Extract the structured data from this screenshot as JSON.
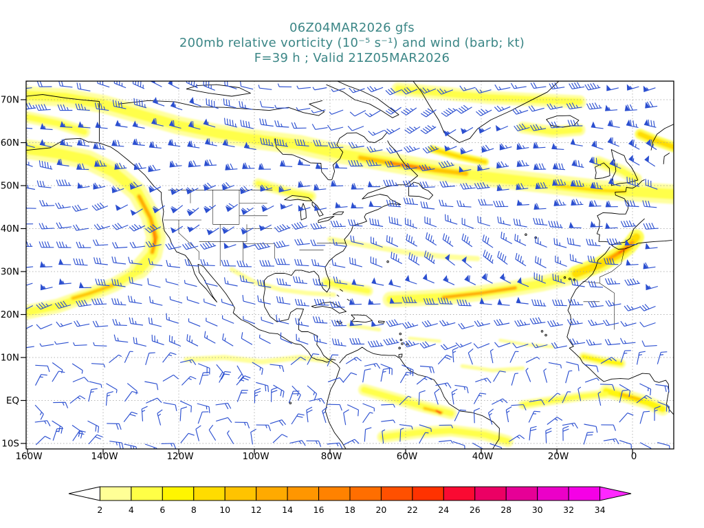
{
  "header": {
    "line1": "06Z04MAR2026 gfs",
    "line2": "200mb relative vorticity (10⁻⁵ s⁻¹) and wind (barb; kt)",
    "line3": "F=39 h ; Valid 21Z05MAR2026"
  },
  "colors": {
    "title_text": "#3b8686",
    "axis_text": "#000000",
    "wind_barb": "#2b4fd0",
    "coastline": "#000000",
    "gridline": "#999999",
    "background": "#ffffff"
  },
  "map": {
    "lat_ticks": [
      {
        "label": "70N",
        "value": 70
      },
      {
        "label": "60N",
        "value": 60
      },
      {
        "label": "50N",
        "value": 50
      },
      {
        "label": "40N",
        "value": 40
      },
      {
        "label": "30N",
        "value": 30
      },
      {
        "label": "20N",
        "value": 20
      },
      {
        "label": "10N",
        "value": 10
      },
      {
        "label": "EQ",
        "value": 0
      },
      {
        "label": "10S",
        "value": -10
      }
    ],
    "lon_ticks": [
      {
        "label": "160W",
        "value": -160
      },
      {
        "label": "140W",
        "value": -140
      },
      {
        "label": "120W",
        "value": -120
      },
      {
        "label": "100W",
        "value": -100
      },
      {
        "label": "80W",
        "value": -80
      },
      {
        "label": "60W",
        "value": -60
      },
      {
        "label": "40W",
        "value": -40
      },
      {
        "label": "20W",
        "value": -20
      },
      {
        "label": "0",
        "value": 0
      }
    ]
  },
  "chart_data": {
    "type": "heatmap",
    "title": "200mb relative vorticity (10⁻⁵ s⁻¹) and wind (barb; kt)",
    "model_run": "06Z04MAR2026 gfs",
    "forecast": "F=39 h",
    "valid": "21Z05MAR2026",
    "level": "200mb",
    "variable": "relative vorticity",
    "units": "10⁻⁵ s⁻¹",
    "wind": {
      "style": "barb",
      "units": "kt"
    },
    "lon_range": [
      -160,
      10
    ],
    "lat_range": [
      -11,
      74
    ],
    "grid": {
      "lon_step": 20,
      "lat_step": 10,
      "style": "dashed"
    },
    "colorbar": {
      "orientation": "horizontal",
      "levels": [
        2,
        4,
        6,
        8,
        10,
        12,
        14,
        16,
        18,
        20,
        22,
        24,
        26,
        28,
        30,
        32,
        34
      ],
      "colors": [
        "#ffffff",
        "#ffff96",
        "#ffff46",
        "#fff500",
        "#ffdc00",
        "#ffc300",
        "#ffaa00",
        "#ff9600",
        "#ff8200",
        "#ff6e00",
        "#ff5000",
        "#ff3200",
        "#fa0a32",
        "#eb0064",
        "#e60096",
        "#eb00c8",
        "#f500e6",
        "#ff28ff"
      ]
    },
    "vorticity_maxima": [
      {
        "lon": -126.5,
        "lat": 38,
        "value": 18
      },
      {
        "lon": -127.5,
        "lat": 43,
        "value": 12
      },
      {
        "lon": -58,
        "lat": 54.5,
        "value": 16
      },
      {
        "lon": -2,
        "lat": 35,
        "value": 21
      },
      {
        "lon": -40,
        "lat": 25,
        "value": 12
      },
      {
        "lon": -144,
        "lat": 25,
        "value": 11
      },
      {
        "lon": -51,
        "lat": -2.7,
        "value": 23
      },
      {
        "lon": 0,
        "lat": 0.8,
        "value": 11
      }
    ],
    "shaded_bands": [
      {
        "v": 5,
        "w": 15,
        "pts": [
          [
            -160.4,
            58.5
          ],
          [
            -152,
            57.5
          ],
          [
            -144,
            56
          ],
          [
            -137,
            53
          ],
          [
            -131,
            48.5
          ],
          [
            -127.5,
            43
          ],
          [
            -126,
            38
          ],
          [
            -127,
            34
          ],
          [
            -130.5,
            30.5
          ]
        ]
      },
      {
        "v": 12,
        "w": 6,
        "pts": [
          [
            -130.5,
            47.5
          ],
          [
            -127.5,
            42.5
          ],
          [
            -126,
            38
          ],
          [
            -127,
            34.5
          ]
        ]
      },
      {
        "v": 18,
        "w": 3,
        "pts": [
          [
            -126.8,
            39.5
          ],
          [
            -126.2,
            36.5
          ]
        ]
      },
      {
        "v": 4,
        "w": 11,
        "pts": [
          [
            -131,
            30
          ],
          [
            -137,
            27
          ],
          [
            -144,
            24.5
          ],
          [
            -152,
            22
          ],
          [
            -160.4,
            20.5
          ]
        ]
      },
      {
        "v": 11,
        "w": 5,
        "pts": [
          [
            -137.5,
            26.8
          ],
          [
            -144,
            24.8
          ],
          [
            -148,
            23.8
          ]
        ]
      },
      {
        "v": 4,
        "w": 14,
        "pts": [
          [
            -160.4,
            71
          ],
          [
            -150,
            70.5
          ],
          [
            -140,
            69
          ],
          [
            -130,
            66.5
          ],
          [
            -120,
            64
          ],
          [
            -110,
            62.2
          ],
          [
            -100,
            60.8
          ]
        ]
      },
      {
        "v": 5,
        "w": 15,
        "pts": [
          [
            -100,
            60.8
          ],
          [
            -88,
            59.5
          ],
          [
            -78,
            57.5
          ],
          [
            -68,
            56
          ],
          [
            -58,
            54.5
          ],
          [
            -48,
            53
          ],
          [
            -38,
            52
          ],
          [
            -28,
            51
          ],
          [
            -18,
            50
          ],
          [
            -8,
            49
          ],
          [
            2,
            48.5
          ],
          [
            10.9,
            48
          ]
        ]
      },
      {
        "v": 11,
        "w": 7,
        "pts": [
          [
            -72,
            56.5
          ],
          [
            -62,
            55
          ],
          [
            -52,
            53.6
          ],
          [
            -44,
            52.8
          ]
        ]
      },
      {
        "v": 16,
        "w": 4,
        "pts": [
          [
            -64,
            55.2
          ],
          [
            -54,
            53.9
          ]
        ]
      },
      {
        "v": 9,
        "w": 5,
        "pts": [
          [
            -20,
            50
          ],
          [
            -10,
            49
          ],
          [
            -2,
            48.6
          ]
        ]
      },
      {
        "v": 4,
        "w": 10,
        "pts": [
          [
            -62,
            72.5
          ],
          [
            -50,
            71.5
          ],
          [
            -38,
            70.5
          ],
          [
            -26,
            70
          ],
          [
            -14,
            69.5
          ]
        ]
      },
      {
        "v": 4,
        "w": 9,
        "pts": [
          [
            -160.4,
            66
          ],
          [
            -152,
            64.5
          ],
          [
            -145,
            62.5
          ]
        ]
      },
      {
        "v": 3,
        "w": 8,
        "pts": [
          [
            -80,
            37.5
          ],
          [
            -70,
            36
          ],
          [
            -60,
            34.5
          ],
          [
            -50,
            33.5
          ],
          [
            -41,
            33
          ]
        ]
      },
      {
        "v": 5,
        "w": 12,
        "pts": [
          [
            -64,
            23.5
          ],
          [
            -56,
            23.8
          ],
          [
            -48,
            24.2
          ],
          [
            -40,
            25
          ],
          [
            -32,
            26
          ],
          [
            -24,
            27.2
          ],
          [
            -17,
            28.6
          ]
        ]
      },
      {
        "v": 12,
        "w": 5,
        "pts": [
          [
            -50,
            24
          ],
          [
            -40,
            25
          ],
          [
            -31,
            26.2
          ]
        ]
      },
      {
        "v": 8,
        "w": 12,
        "pts": [
          [
            -15,
            29.5
          ],
          [
            -9,
            31.5
          ],
          [
            -4,
            33.8
          ],
          [
            -1,
            35.8
          ],
          [
            1,
            38
          ]
        ]
      },
      {
        "v": 15,
        "w": 5,
        "pts": [
          [
            -6,
            33
          ],
          [
            -2,
            35.2
          ],
          [
            0,
            36.8
          ]
        ]
      },
      {
        "v": 21,
        "w": 2.5,
        "pts": [
          [
            -3.5,
            34.4
          ],
          [
            -1.5,
            35.6
          ]
        ]
      },
      {
        "v": 3,
        "w": 7,
        "pts": [
          [
            -106,
            30.5
          ],
          [
            -100,
            27.5
          ],
          [
            -93,
            25.8
          ],
          [
            -86,
            25
          ],
          [
            -79,
            24.6
          ]
        ]
      },
      {
        "v": 4,
        "w": 8,
        "pts": [
          [
            -81,
            27.5
          ],
          [
            -75,
            26.3
          ],
          [
            -70,
            25.5
          ]
        ]
      },
      {
        "v": 3.5,
        "w": 8,
        "pts": [
          [
            -118,
            9.5
          ],
          [
            -108,
            10
          ],
          [
            -98,
            9
          ],
          [
            -88,
            10
          ],
          [
            -80,
            9.2
          ]
        ]
      },
      {
        "v": 4,
        "w": 9,
        "pts": [
          [
            -71,
            2.5
          ],
          [
            -63,
            0.5
          ],
          [
            -55,
            -1.5
          ],
          [
            -48,
            -3
          ]
        ]
      },
      {
        "v": 10,
        "w": 4,
        "pts": [
          [
            -55,
            -1.8
          ],
          [
            -50.5,
            -2.8
          ]
        ]
      },
      {
        "v": 23,
        "w": 3,
        "pts": [
          [
            -51.8,
            -2.4
          ],
          [
            -50.8,
            -2.9
          ]
        ]
      },
      {
        "v": 4,
        "w": 9,
        "pts": [
          [
            -66,
            -8.5
          ],
          [
            -57,
            -7.5
          ],
          [
            -48,
            -7
          ],
          [
            -39,
            -8
          ],
          [
            -33,
            -9.5
          ]
        ]
      },
      {
        "v": 6,
        "w": 10,
        "pts": [
          [
            -7,
            2.2
          ],
          [
            -1,
            0.8
          ],
          [
            4,
            -0.5
          ],
          [
            8,
            -2
          ]
        ]
      },
      {
        "v": 11,
        "w": 4,
        "pts": [
          [
            -3,
            1.4
          ],
          [
            2,
            0.2
          ]
        ]
      },
      {
        "v": 7,
        "w": 7,
        "pts": [
          [
            -13,
            10.2
          ],
          [
            -8,
            9.2
          ],
          [
            -3,
            8.6
          ]
        ]
      },
      {
        "v": 3,
        "w": 6,
        "pts": [
          [
            -45,
            8
          ],
          [
            -37,
            7
          ],
          [
            -29,
            7.5
          ]
        ]
      },
      {
        "v": 3,
        "w": 5,
        "pts": [
          [
            -35,
            14
          ],
          [
            -28,
            13
          ],
          [
            -21,
            12.5
          ]
        ]
      },
      {
        "v": 3,
        "w": 5,
        "pts": [
          [
            -59,
            14.5
          ],
          [
            -51,
            13.8
          ]
        ]
      },
      {
        "v": 3,
        "w": 6,
        "pts": [
          [
            -75,
            17.5
          ],
          [
            -67,
            16.5
          ]
        ]
      },
      {
        "v": 4,
        "w": 7,
        "pts": [
          [
            -29,
            -1
          ],
          [
            -21,
            0
          ],
          [
            -13,
            1
          ],
          [
            -7,
            1.5
          ]
        ]
      },
      {
        "v": 4,
        "w": 9,
        "pts": [
          [
            -29,
            63.5
          ],
          [
            -21,
            62.5
          ],
          [
            -14,
            63
          ]
        ]
      },
      {
        "v": 4,
        "w": 9,
        "pts": [
          [
            -9,
            55.5
          ],
          [
            -3,
            53.5
          ],
          [
            1,
            51.5
          ]
        ]
      },
      {
        "v": 4,
        "w": 8,
        "pts": [
          [
            -99,
            50.5
          ],
          [
            -91,
            48.5
          ],
          [
            -85,
            47.5
          ]
        ]
      },
      {
        "v": 9,
        "w": 6,
        "pts": [
          [
            -53,
            58.5
          ],
          [
            -46,
            56.8
          ],
          [
            -39,
            55.5
          ]
        ]
      },
      {
        "v": 9,
        "w": 8,
        "pts": [
          [
            2,
            62
          ],
          [
            6,
            60.5
          ],
          [
            10.9,
            59
          ]
        ]
      }
    ]
  }
}
